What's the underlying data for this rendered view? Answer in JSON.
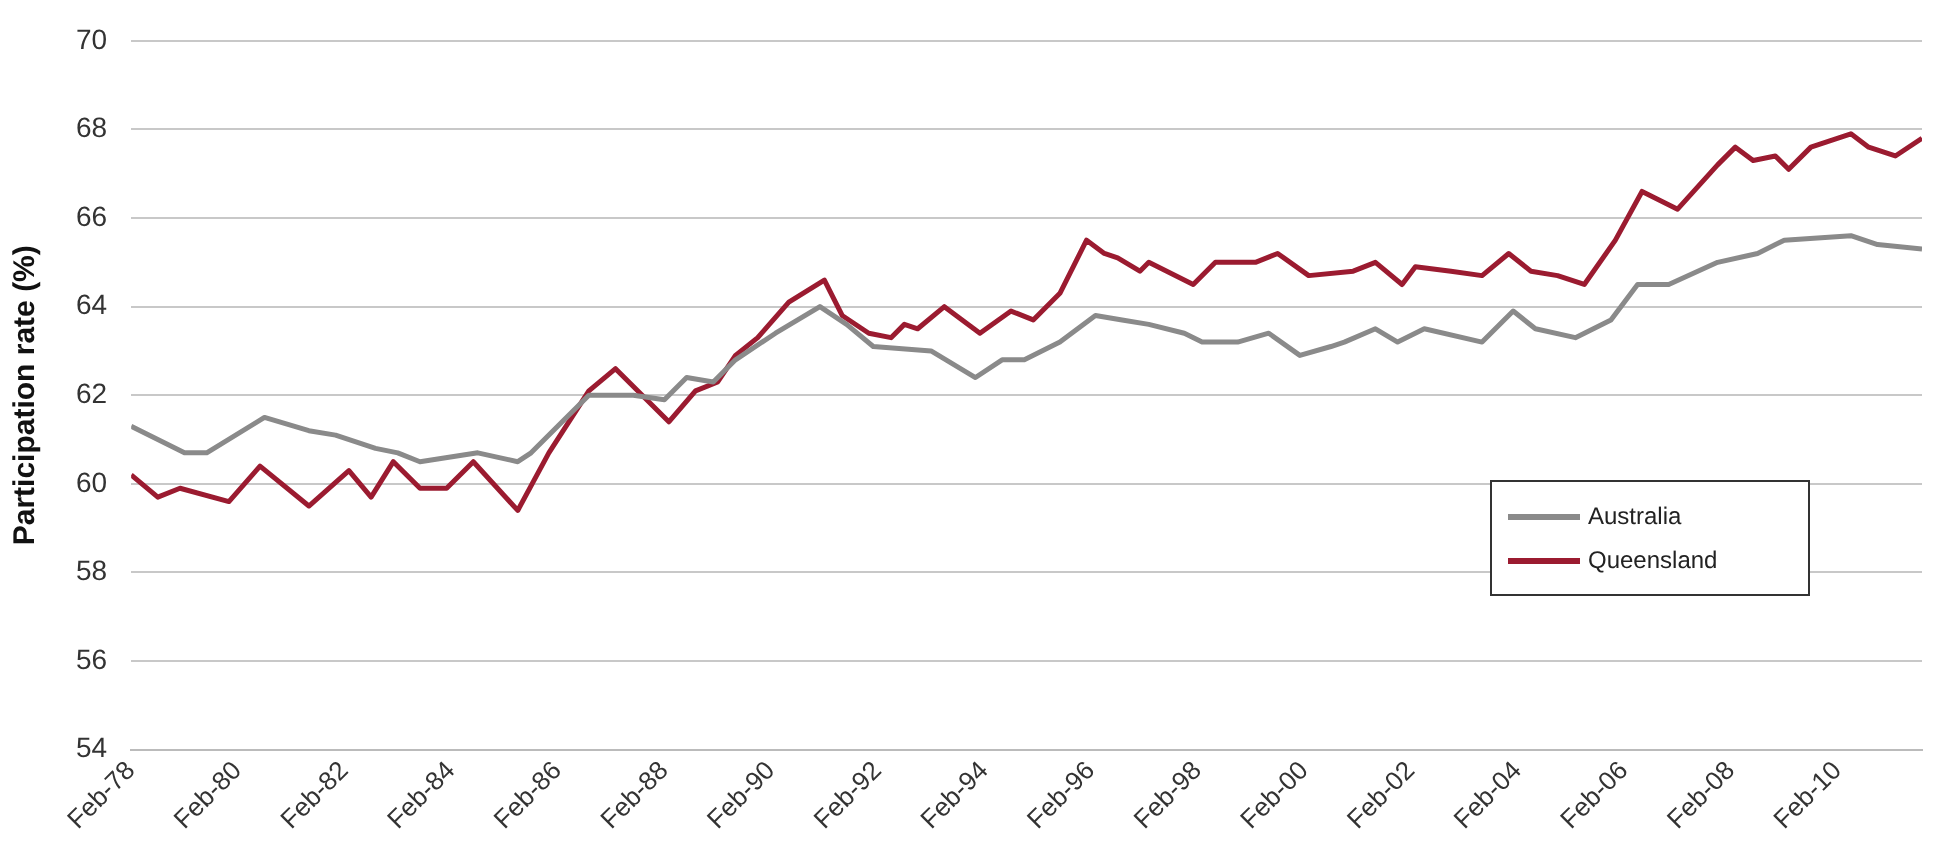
{
  "chart_data": {
    "type": "line",
    "ylabel": "Participation rate (%)",
    "xlim": [
      "1978-02",
      "2011-09"
    ],
    "xticks": [
      {
        "value": "1978-02",
        "label": "Feb-78"
      },
      {
        "value": "1980-02",
        "label": "Feb-80"
      },
      {
        "value": "1982-02",
        "label": "Feb-82"
      },
      {
        "value": "1984-02",
        "label": "Feb-84"
      },
      {
        "value": "1986-02",
        "label": "Feb-86"
      },
      {
        "value": "1988-02",
        "label": "Feb-88"
      },
      {
        "value": "1990-02",
        "label": "Feb-90"
      },
      {
        "value": "1992-02",
        "label": "Feb-92"
      },
      {
        "value": "1994-02",
        "label": "Feb-94"
      },
      {
        "value": "1996-02",
        "label": "Feb-96"
      },
      {
        "value": "1998-02",
        "label": "Feb-98"
      },
      {
        "value": "2000-02",
        "label": "Feb-00"
      },
      {
        "value": "2002-02",
        "label": "Feb-02"
      },
      {
        "value": "2004-02",
        "label": "Feb-04"
      },
      {
        "value": "2006-02",
        "label": "Feb-06"
      },
      {
        "value": "2008-02",
        "label": "Feb-08"
      },
      {
        "value": "2010-02",
        "label": "Feb-10"
      }
    ],
    "ylim": [
      54,
      70
    ],
    "yticks": [
      54,
      56,
      58,
      60,
      62,
      64,
      66,
      68,
      70
    ],
    "grid": "y",
    "legend": "bottom right",
    "marker": "none",
    "line_style": "solid",
    "series": [
      {
        "name": "Australia",
        "color": "#8a8a8a",
        "x": [
          "1978-02",
          "1979-02",
          "1979-07",
          "1980-08",
          "1981-06",
          "1981-12",
          "1982-09",
          "1983-02",
          "1983-07",
          "1984-08",
          "1985-05",
          "1985-08",
          "1986-03",
          "1986-09",
          "1987-07",
          "1988-02",
          "1988-07",
          "1989-01",
          "1989-06",
          "1990-03",
          "1991-01",
          "1991-07",
          "1992-01",
          "1993-02",
          "1993-12",
          "1994-06",
          "1994-11",
          "1995-07",
          "1996-03",
          "1996-09",
          "1997-03",
          "1997-11",
          "1998-03",
          "1998-11",
          "1999-06",
          "2000-01",
          "2000-08",
          "2000-11",
          "2001-06",
          "2001-11",
          "2002-05",
          "2003-06",
          "2004-01",
          "2004-06",
          "2005-03",
          "2005-11",
          "2006-05",
          "2006-12",
          "2007-11",
          "2008-08",
          "2009-02",
          "2010-05",
          "2010-11",
          "2011-09"
        ],
        "values": [
          61.3,
          60.7,
          60.7,
          61.5,
          61.2,
          61.1,
          60.8,
          60.7,
          60.5,
          60.7,
          60.5,
          60.7,
          61.4,
          62.0,
          62.0,
          61.9,
          62.4,
          62.3,
          62.8,
          63.4,
          64.0,
          63.6,
          63.1,
          63.0,
          62.4,
          62.8,
          62.8,
          63.2,
          63.8,
          63.7,
          63.6,
          63.4,
          63.2,
          63.2,
          63.4,
          62.9,
          63.1,
          63.2,
          63.5,
          63.2,
          63.5,
          63.2,
          63.9,
          63.5,
          63.3,
          63.7,
          64.5,
          64.5,
          65.0,
          65.2,
          65.5,
          65.6,
          65.4,
          65.3
        ]
      },
      {
        "name": "Queensland",
        "color": "#9b1b30",
        "x": [
          "1978-02",
          "1978-08",
          "1979-01",
          "1979-12",
          "1980-07",
          "1981-06",
          "1982-03",
          "1982-08",
          "1983-01",
          "1983-07",
          "1984-01",
          "1984-07",
          "1985-05",
          "1985-12",
          "1986-09",
          "1987-03",
          "1988-03",
          "1988-09",
          "1989-02",
          "1989-06",
          "1989-11",
          "1990-06",
          "1991-02",
          "1991-06",
          "1991-12",
          "1992-05",
          "1992-08",
          "1992-11",
          "1993-05",
          "1994-01",
          "1994-08",
          "1995-01",
          "1995-07",
          "1996-01",
          "1996-05",
          "1996-08",
          "1997-01",
          "1997-03",
          "1998-01",
          "1998-06",
          "1999-03",
          "1999-08",
          "2000-03",
          "2001-01",
          "2001-06",
          "2001-12",
          "2002-03",
          "2002-11",
          "2003-06",
          "2003-12",
          "2004-05",
          "2004-11",
          "2005-05",
          "2005-12",
          "2006-06",
          "2007-02",
          "2007-11",
          "2008-03",
          "2008-07",
          "2008-12",
          "2009-03",
          "2009-08",
          "2010-05",
          "2010-09",
          "2011-03",
          "2011-09"
        ],
        "values": [
          60.2,
          59.7,
          59.9,
          59.6,
          60.4,
          59.5,
          60.3,
          59.7,
          60.5,
          59.9,
          59.9,
          60.5,
          59.4,
          60.7,
          62.1,
          62.6,
          61.4,
          62.1,
          62.3,
          62.9,
          63.3,
          64.1,
          64.6,
          63.8,
          63.4,
          63.3,
          63.6,
          63.5,
          64.0,
          63.4,
          63.9,
          63.7,
          64.3,
          65.5,
          65.2,
          65.1,
          64.8,
          65.0,
          64.5,
          65.0,
          65.0,
          65.2,
          64.7,
          64.8,
          65.0,
          64.5,
          64.9,
          64.8,
          64.7,
          65.2,
          64.8,
          64.7,
          64.5,
          65.5,
          66.6,
          66.2,
          67.2,
          67.6,
          67.3,
          67.4,
          67.1,
          67.6,
          67.9,
          67.6,
          67.4,
          67.8
        ]
      }
    ]
  }
}
